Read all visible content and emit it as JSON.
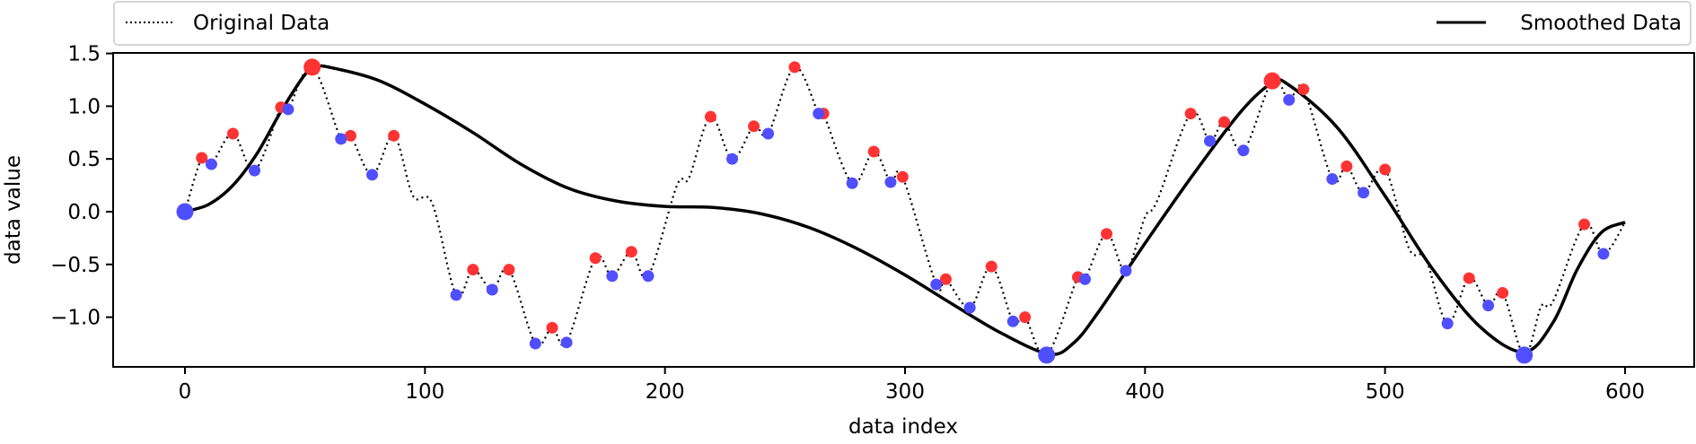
{
  "chart_data": {
    "type": "line",
    "title": "",
    "xlabel": "data index",
    "ylabel": "data value",
    "xlim": [
      -30,
      629
    ],
    "ylim": [
      -1.47,
      1.505
    ],
    "xticks": [
      "0",
      "100",
      "200",
      "300",
      "400",
      "500",
      "600"
    ],
    "yticks": [
      "1.5",
      "1.0",
      "0.5",
      "0.0",
      "−0.5",
      "−1.0"
    ],
    "grid": false,
    "legend": {
      "placement": "top, outside",
      "entries": [
        "Original Data",
        "Smoothed Data"
      ]
    },
    "colors": {
      "maxima": "#ff3333",
      "minima": "#4f4fff",
      "line": "#000000"
    },
    "series": [
      {
        "name": "Original Data",
        "style": "dotted",
        "x": [
          0,
          7,
          11,
          20,
          29,
          40,
          43,
          53,
          65,
          69,
          78,
          87,
          95,
          103,
          113,
          120,
          128,
          135,
          146,
          153,
          159,
          171,
          178,
          186,
          193,
          205,
          210,
          219,
          228,
          237,
          243,
          254,
          264,
          266,
          278,
          287,
          294,
          299,
          313,
          317,
          327,
          336,
          345,
          350,
          359,
          372,
          375,
          384,
          392,
          400,
          405,
          419,
          427,
          433,
          441,
          453,
          460,
          466,
          478,
          484,
          491,
          500,
          510,
          517,
          526,
          535,
          543,
          549,
          558,
          565,
          570,
          583,
          591,
          600
        ],
        "y": [
          0,
          0.51,
          0.45,
          0.74,
          0.39,
          0.99,
          0.97,
          1.37,
          0.69,
          0.72,
          0.35,
          0.72,
          0.15,
          0.08,
          -0.79,
          -0.55,
          -0.74,
          -0.55,
          -1.25,
          -1.1,
          -1.24,
          -0.44,
          -0.61,
          -0.38,
          -0.61,
          0.25,
          0.32,
          0.9,
          0.5,
          0.81,
          0.74,
          1.37,
          0.93,
          0.93,
          0.27,
          0.57,
          0.28,
          0.33,
          -0.69,
          -0.64,
          -0.91,
          -0.52,
          -1.04,
          -1.0,
          -1.36,
          -0.62,
          -0.64,
          -0.21,
          -0.56,
          -0.05,
          0.1,
          0.93,
          0.67,
          0.85,
          0.58,
          1.24,
          1.06,
          1.16,
          0.31,
          0.43,
          0.18,
          0.4,
          -0.35,
          -0.45,
          -1.06,
          -0.63,
          -0.89,
          -0.77,
          -1.36,
          -0.9,
          -0.85,
          -0.12,
          -0.4,
          -0.1
        ]
      },
      {
        "name": "Smoothed Data",
        "style": "solid",
        "x": [
          0,
          10,
          20,
          30,
          40,
          50,
          55,
          60,
          80,
          100,
          120,
          140,
          160,
          180,
          200,
          220,
          240,
          260,
          280,
          300,
          320,
          340,
          360,
          370,
          380,
          400,
          420,
          440,
          453,
          460,
          480,
          500,
          520,
          540,
          558,
          570,
          580,
          590,
          600
        ],
        "y": [
          0,
          0.07,
          0.25,
          0.55,
          0.95,
          1.3,
          1.37,
          1.37,
          1.25,
          1.02,
          0.75,
          0.45,
          0.22,
          0.1,
          0.05,
          0.04,
          -0.02,
          -0.15,
          -0.35,
          -0.6,
          -0.88,
          -1.15,
          -1.35,
          -1.25,
          -0.97,
          -0.3,
          0.35,
          0.95,
          1.22,
          1.2,
          0.8,
          0.15,
          -0.55,
          -1.1,
          -1.33,
          -1.05,
          -0.55,
          -0.2,
          -0.1
        ]
      }
    ],
    "local_maxima": {
      "x": [
        7,
        20,
        40,
        69,
        87,
        120,
        135,
        153,
        171,
        186,
        219,
        237,
        254,
        266,
        287,
        299,
        317,
        336,
        350,
        372,
        384,
        419,
        433,
        466,
        484,
        500,
        535,
        549,
        583
      ],
      "y": [
        0.51,
        0.74,
        0.99,
        0.72,
        0.72,
        -0.55,
        -0.55,
        -1.1,
        -0.44,
        -0.38,
        0.9,
        0.81,
        1.37,
        0.93,
        0.57,
        0.33,
        -0.64,
        -0.52,
        -1.0,
        -0.62,
        -0.21,
        0.93,
        0.85,
        1.16,
        0.43,
        0.4,
        -0.63,
        -0.77,
        -0.12
      ]
    },
    "local_minima": {
      "x": [
        11,
        29,
        43,
        65,
        78,
        113,
        128,
        146,
        159,
        178,
        193,
        228,
        243,
        264,
        278,
        294,
        313,
        327,
        345,
        375,
        392,
        427,
        441,
        460,
        478,
        491,
        526,
        543,
        591
      ],
      "y": [
        0.45,
        0.39,
        0.97,
        0.69,
        0.35,
        -0.79,
        -0.74,
        -1.25,
        -1.24,
        -0.61,
        -0.61,
        0.5,
        0.74,
        0.93,
        0.27,
        0.28,
        -0.69,
        -0.91,
        -1.04,
        -0.64,
        -0.56,
        0.67,
        0.58,
        1.06,
        0.31,
        0.18,
        -1.06,
        -0.89,
        -0.4
      ]
    },
    "global_maxima": {
      "x": [
        53,
        453
      ],
      "y": [
        1.37,
        1.24
      ]
    },
    "global_minima": {
      "x": [
        0,
        359,
        558
      ],
      "y": [
        0,
        -1.36,
        -1.36
      ]
    }
  }
}
